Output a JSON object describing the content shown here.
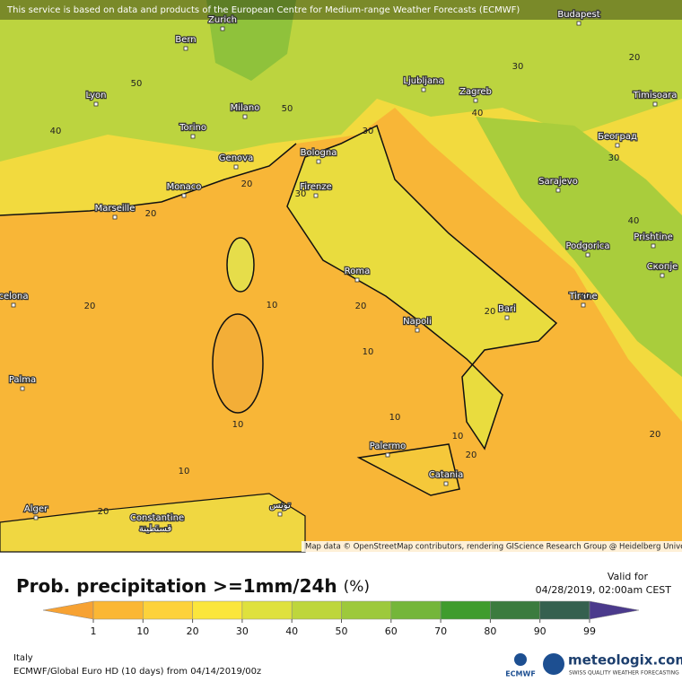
{
  "map": {
    "notice": "This service is based on data and products of the European Centre for Medium-range Weather Forecasts (ECMWF)",
    "attribution": "Map data © OpenStreetMap contributors, rendering GIScience Research Group @ Heidelberg University",
    "cities": [
      "Bern",
      "Zurich",
      "Budapest",
      "Lyon",
      "Ljubljana",
      "Zagreb",
      "Timisoara",
      "Milano",
      "Torino",
      "Београд",
      "Bologna",
      "Genova",
      "Sarajevo",
      "Monaco",
      "Firenze",
      "Marseille",
      "Podgorica",
      "Prishtine",
      "Скопје",
      "Roma",
      "Tirane",
      "celona",
      "Bari",
      "Napoli",
      "Palma",
      "Palermo",
      "Catania",
      "Alger",
      "Constantine",
      "قسنطينة",
      "تونس"
    ],
    "contour_labels": [
      50,
      40,
      50,
      30,
      30,
      20,
      40,
      30,
      40,
      20,
      20,
      30,
      20,
      10,
      20,
      20,
      20,
      10,
      10,
      10,
      10,
      20,
      10,
      20,
      20
    ]
  },
  "legend": {
    "title": "Prob. precipitation >=1mm/24h",
    "unit": "(%)",
    "valid_label": "Valid for",
    "valid_time": "04/28/2019, 02:00am CEST",
    "ticks": [
      1,
      10,
      20,
      30,
      40,
      50,
      60,
      70,
      80,
      90,
      99
    ],
    "colors": [
      "#f7a233",
      "#fbb734",
      "#fdd23b",
      "#fbe63c",
      "#dfe13d",
      "#bed63c",
      "#9dc93c",
      "#74b63a",
      "#3f9c2d",
      "#3b7b3e",
      "#35604f",
      "#4b3a8c"
    ]
  },
  "footer": {
    "region": "Italy",
    "model": "ECMWF/Global Euro HD (10 days) from 04/14/2019/00z",
    "ecmwf": "ECMWF",
    "brand": "meteologix.com",
    "tagline": "SWISS QUALITY WEATHER FORECASTING"
  }
}
